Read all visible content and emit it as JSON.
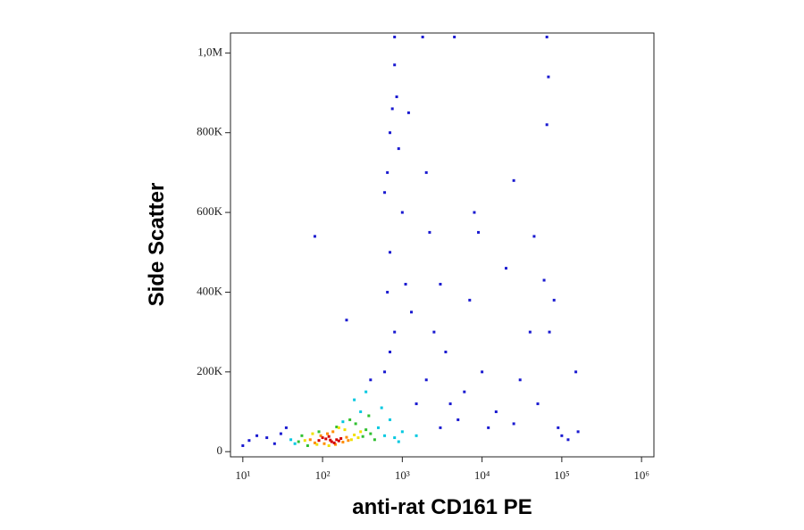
{
  "chart_data": {
    "type": "scatter",
    "x_label": "anti-rat CD161 PE",
    "y_label": "Side Scatter",
    "xscale": "log",
    "xlim": [
      7,
      1430000
    ],
    "xticks": [
      {
        "value": 10,
        "label": "10¹"
      },
      {
        "value": 100,
        "label": "10²"
      },
      {
        "value": 1000,
        "label": "10³"
      },
      {
        "value": 10000,
        "label": "10⁴"
      },
      {
        "value": 100000,
        "label": "10⁵"
      },
      {
        "value": 1000000,
        "label": "10⁶"
      }
    ],
    "ylim": [
      -13000,
      1050000
    ],
    "yticks": [
      0,
      {
        "value": 200000,
        "label": "200K"
      },
      {
        "value": 400000,
        "label": "400K"
      },
      {
        "value": 600000,
        "label": "600K"
      },
      {
        "value": 800000,
        "label": "800K"
      },
      {
        "value": 1000000,
        "label": "1,0M"
      }
    ],
    "series": [
      {
        "color": "#1a1ad0",
        "x": [
          20,
          25,
          30,
          35,
          12,
          15,
          400,
          600,
          700,
          800,
          650,
          700,
          600,
          650,
          700,
          750,
          800,
          850,
          900,
          1200,
          1000,
          1100,
          1300,
          2000,
          2200,
          2500,
          3000,
          2000,
          3500,
          4000,
          5000,
          6000,
          8000,
          9000,
          7000,
          10000,
          12000,
          15000,
          20000,
          25000,
          30000,
          40000,
          45000,
          60000,
          65000,
          68000,
          70000,
          80000,
          90000,
          100000,
          120000,
          150000,
          160000,
          50000,
          3000,
          1500,
          200,
          80,
          10,
          25000,
          1800,
          4500,
          65000,
          800
        ],
        "values": [
          35000,
          20000,
          45000,
          60000,
          28000,
          40000,
          180000,
          200000,
          250000,
          300000,
          400000,
          500000,
          650000,
          700000,
          800000,
          860000,
          970000,
          890000,
          760000,
          850000,
          600000,
          420000,
          350000,
          700000,
          550000,
          300000,
          420000,
          180000,
          250000,
          120000,
          80000,
          150000,
          600000,
          550000,
          380000,
          200000,
          60000,
          100000,
          460000,
          680000,
          180000,
          300000,
          540000,
          430000,
          820000,
          940000,
          300000,
          380000,
          60000,
          40000,
          30000,
          200000,
          50000,
          120000,
          60000,
          120000,
          330000,
          540000,
          15000,
          70000,
          1040000,
          1040000,
          1040000,
          1040000
        ]
      },
      {
        "color": "#00c8e0",
        "x": [
          40,
          45,
          500,
          600,
          300,
          700,
          800,
          1000,
          250,
          180,
          550,
          1500,
          350,
          900
        ],
        "values": [
          30000,
          20000,
          60000,
          40000,
          100000,
          80000,
          35000,
          50000,
          130000,
          75000,
          110000,
          40000,
          150000,
          25000
        ]
      },
      {
        "color": "#30c030",
        "x": [
          50,
          55,
          320,
          350,
          260,
          65,
          400,
          220,
          150,
          450,
          90,
          380
        ],
        "values": [
          25000,
          40000,
          38000,
          55000,
          70000,
          15000,
          45000,
          80000,
          62000,
          30000,
          50000,
          90000
        ]
      },
      {
        "color": "#f0e000",
        "x": [
          60,
          75,
          230,
          250,
          190,
          85,
          160,
          280,
          120,
          300
        ],
        "values": [
          28000,
          45000,
          30000,
          42000,
          55000,
          18000,
          60000,
          35000,
          15000,
          50000
        ]
      },
      {
        "color": "#ff8c00",
        "x": [
          80,
          95,
          180,
          200,
          115,
          145,
          70,
          210,
          135,
          105
        ],
        "values": [
          22000,
          40000,
          24000,
          36000,
          45000,
          18000,
          30000,
          28000,
          50000,
          20000
        ]
      },
      {
        "color": "#d40000",
        "x": [
          90,
          110,
          130,
          150,
          120,
          140,
          100,
          160,
          170,
          125
        ],
        "values": [
          28000,
          32000,
          25000,
          30000,
          38000,
          22000,
          35000,
          27000,
          33000,
          29000
        ]
      }
    ]
  }
}
